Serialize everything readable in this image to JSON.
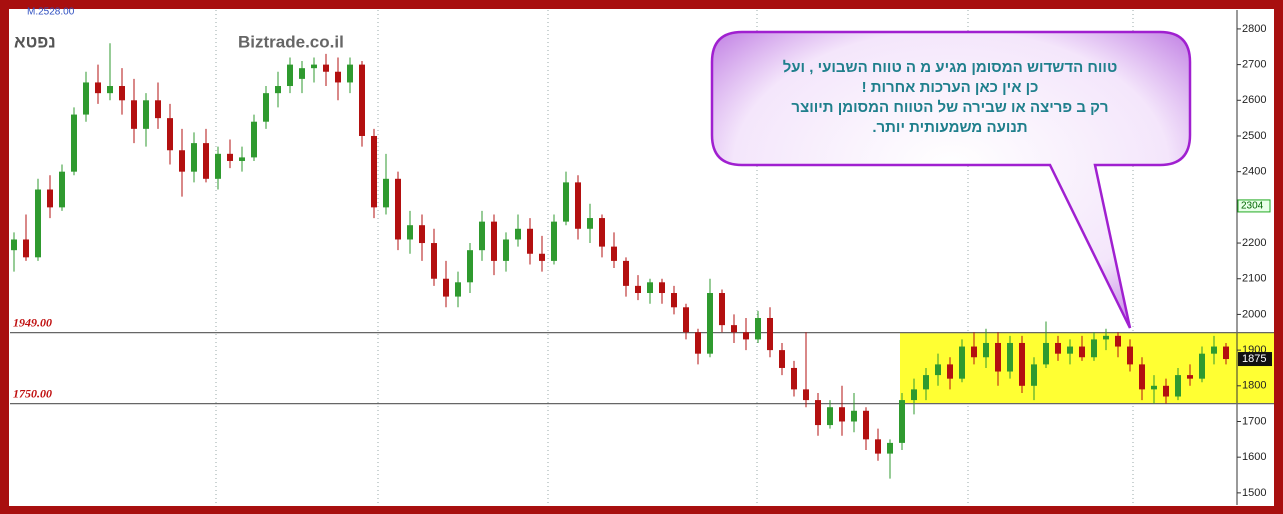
{
  "chart_data": {
    "type": "candlestick",
    "header_label": "M.2528.00",
    "symbol": "נפטא",
    "watermark": "Biztrade.co.il",
    "callout": [
      "טווח הדשדוש המסומן מגיע מ ה טווח השבועי , ועל",
      "כן אין כאן הערכות אחרות !",
      "רק ב פריצה או שבירה של הטווח המסומן תיווצר",
      "תנועה משמעותית יותר."
    ],
    "open": [
      2180,
      2210,
      2160,
      2350,
      2300,
      2400,
      2560,
      2650,
      2620,
      2640,
      2600,
      2520,
      2600,
      2550,
      2460,
      2400,
      2480,
      2380,
      2450,
      2430,
      2440,
      2540,
      2620,
      2640,
      2660,
      2690,
      2700,
      2680,
      2650,
      2700,
      2500,
      2300,
      2380,
      2210,
      2250,
      2200,
      2100,
      2050,
      2090,
      2180,
      2260,
      2150,
      2210,
      2240,
      2170,
      2150,
      2260,
      2370,
      2240,
      2270,
      2190,
      2150,
      2080,
      2060,
      2090,
      2060,
      2020,
      1950,
      1890,
      2060,
      1970,
      1950,
      1930,
      1990,
      1900,
      1850,
      1790,
      1760,
      1690,
      1740,
      1700,
      1730,
      1650,
      1610,
      1640,
      1760,
      1790,
      1830,
      1860,
      1820,
      1910,
      1880,
      1920,
      1840,
      1920,
      1800,
      1860,
      1920,
      1890,
      1910,
      1880,
      1930,
      1940,
      1910,
      1860,
      1790,
      1800,
      1770,
      1830,
      1820,
      1890,
      1910
    ],
    "high": [
      2230,
      2280,
      2380,
      2390,
      2420,
      2580,
      2680,
      2700,
      2760,
      2690,
      2660,
      2620,
      2650,
      2590,
      2520,
      2510,
      2520,
      2470,
      2490,
      2470,
      2560,
      2640,
      2680,
      2720,
      2710,
      2720,
      2730,
      2720,
      2720,
      2710,
      2520,
      2450,
      2400,
      2290,
      2280,
      2240,
      2150,
      2120,
      2200,
      2290,
      2280,
      2230,
      2280,
      2270,
      2220,
      2280,
      2400,
      2390,
      2310,
      2280,
      2230,
      2160,
      2110,
      2100,
      2100,
      2080,
      2030,
      1960,
      2100,
      2070,
      2000,
      1990,
      2010,
      2020,
      1920,
      1870,
      1950,
      1780,
      1760,
      1800,
      1780,
      1740,
      1680,
      1650,
      1780,
      1820,
      1850,
      1890,
      1880,
      1930,
      1950,
      1960,
      1950,
      1940,
      1940,
      1880,
      1980,
      1940,
      1930,
      1940,
      1950,
      1960,
      1950,
      1930,
      1880,
      1830,
      1820,
      1850,
      1860,
      1910,
      1940,
      1920
    ],
    "low": [
      2120,
      2150,
      2150,
      2270,
      2290,
      2390,
      2540,
      2590,
      2600,
      2560,
      2480,
      2470,
      2520,
      2420,
      2330,
      2370,
      2370,
      2350,
      2410,
      2400,
      2430,
      2520,
      2580,
      2620,
      2620,
      2650,
      2640,
      2600,
      2620,
      2470,
      2270,
      2280,
      2180,
      2170,
      2150,
      2080,
      2020,
      2020,
      2060,
      2150,
      2110,
      2120,
      2190,
      2140,
      2120,
      2140,
      2250,
      2210,
      2200,
      2160,
      2130,
      2050,
      2040,
      2030,
      2030,
      2000,
      1930,
      1860,
      1880,
      1950,
      1920,
      1900,
      1920,
      1880,
      1830,
      1770,
      1740,
      1660,
      1680,
      1660,
      1670,
      1620,
      1590,
      1540,
      1620,
      1720,
      1760,
      1800,
      1790,
      1810,
      1860,
      1850,
      1800,
      1820,
      1780,
      1760,
      1850,
      1870,
      1860,
      1870,
      1870,
      1900,
      1880,
      1840,
      1760,
      1750,
      1750,
      1760,
      1800,
      1810,
      1860,
      1860
    ],
    "close": [
      2210,
      2160,
      2350,
      2300,
      2400,
      2560,
      2650,
      2620,
      2640,
      2600,
      2520,
      2600,
      2550,
      2460,
      2400,
      2480,
      2380,
      2450,
      2430,
      2440,
      2540,
      2620,
      2640,
      2700,
      2690,
      2700,
      2680,
      2650,
      2700,
      2500,
      2300,
      2380,
      2210,
      2250,
      2200,
      2100,
      2050,
      2090,
      2180,
      2260,
      2150,
      2210,
      2240,
      2170,
      2150,
      2260,
      2370,
      2240,
      2270,
      2190,
      2150,
      2080,
      2060,
      2090,
      2060,
      2020,
      1950,
      1890,
      2060,
      1970,
      1950,
      1930,
      1990,
      1900,
      1850,
      1790,
      1760,
      1690,
      1740,
      1700,
      1730,
      1650,
      1610,
      1640,
      1760,
      1790,
      1830,
      1860,
      1820,
      1910,
      1880,
      1920,
      1840,
      1920,
      1800,
      1860,
      1920,
      1890,
      1910,
      1880,
      1930,
      1940,
      1910,
      1860,
      1790,
      1800,
      1770,
      1830,
      1820,
      1890,
      1910,
      1875
    ],
    "up_color": "#2f9a2f",
    "down_color": "#b31010",
    "levels": [
      {
        "value": 1949,
        "label": "1949.00"
      },
      {
        "value": 1750,
        "label": "1750.00"
      }
    ],
    "reference_price": 2304,
    "ylim": [
      1466,
      2853
    ],
    "yticks": [
      1500,
      1600,
      1700,
      1800,
      1900,
      2000,
      2100,
      2200,
      2300,
      2400,
      2500,
      2600,
      2700,
      2800
    ]
  }
}
